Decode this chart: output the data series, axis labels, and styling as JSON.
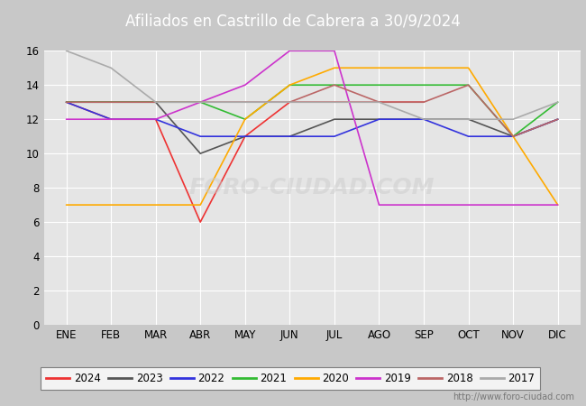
{
  "title": "Afiliados en Castrillo de Cabrera a 30/9/2024",
  "months": [
    "ENE",
    "FEB",
    "MAR",
    "ABR",
    "MAY",
    "JUN",
    "JUL",
    "AGO",
    "SEP",
    "OCT",
    "NOV",
    "DIC"
  ],
  "ylim": [
    0,
    16
  ],
  "yticks": [
    0,
    2,
    4,
    6,
    8,
    10,
    12,
    14,
    16
  ],
  "series": {
    "2024": {
      "color": "#ee3333",
      "data": [
        13,
        12,
        12,
        6,
        11,
        13,
        13,
        13,
        13,
        null,
        null,
        null
      ]
    },
    "2023": {
      "color": "#555555",
      "data": [
        13,
        13,
        13,
        10,
        11,
        11,
        12,
        12,
        12,
        12,
        11,
        12
      ]
    },
    "2022": {
      "color": "#3333dd",
      "data": [
        13,
        12,
        12,
        11,
        11,
        11,
        11,
        12,
        12,
        11,
        11,
        12
      ]
    },
    "2021": {
      "color": "#33bb33",
      "data": [
        13,
        13,
        13,
        13,
        12,
        14,
        14,
        14,
        14,
        14,
        11,
        13
      ]
    },
    "2020": {
      "color": "#ffaa00",
      "data": [
        7,
        7,
        7,
        7,
        12,
        14,
        15,
        15,
        15,
        15,
        11,
        7
      ]
    },
    "2019": {
      "color": "#cc33cc",
      "data": [
        12,
        12,
        12,
        13,
        14,
        16,
        16,
        7,
        7,
        7,
        7,
        7
      ]
    },
    "2018": {
      "color": "#bb6666",
      "data": [
        13,
        13,
        13,
        13,
        13,
        13,
        14,
        13,
        13,
        14,
        11,
        12
      ]
    },
    "2017": {
      "color": "#aaaaaa",
      "data": [
        16,
        15,
        13,
        13,
        13,
        13,
        13,
        13,
        12,
        12,
        12,
        13
      ]
    }
  },
  "legend_order": [
    "2024",
    "2023",
    "2022",
    "2021",
    "2020",
    "2019",
    "2018",
    "2017"
  ],
  "title_bg_color": "#3a9fd4",
  "title_font_color": "white",
  "title_fontsize": 12,
  "plot_bg_color": "#e5e5e5",
  "grid_color": "white",
  "fig_bg_color": "#c8c8c8",
  "watermark": "http://www.foro-ciudad.com",
  "watermark_plot": "FORO-CIUDAD.COM"
}
